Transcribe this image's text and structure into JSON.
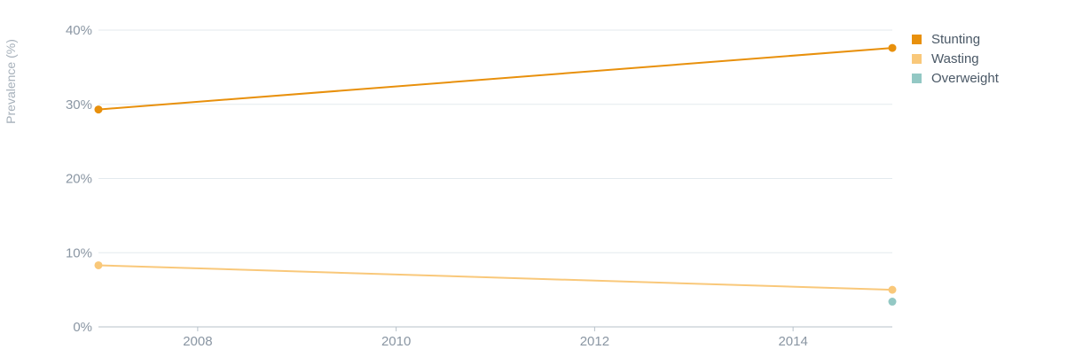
{
  "chart_data": {
    "type": "line",
    "title": "",
    "xlabel": "",
    "ylabel": "Prevalence (%)",
    "xlim": [
      2007,
      2015
    ],
    "ylim": [
      0,
      40
    ],
    "x_ticks": [
      2008,
      2010,
      2012,
      2014
    ],
    "y_ticks": [
      0,
      10,
      20,
      30,
      40
    ],
    "y_tick_labels": [
      "0%",
      "10%",
      "20%",
      "30%",
      "40%"
    ],
    "grid": "horizontal",
    "legend_position": "right",
    "series": [
      {
        "name": "Stunting",
        "color": "#E8900C",
        "points": [
          {
            "x": 2007,
            "y": 29.3
          },
          {
            "x": 2015,
            "y": 37.6
          }
        ]
      },
      {
        "name": "Wasting",
        "color": "#F9C87A",
        "points": [
          {
            "x": 2007,
            "y": 8.3
          },
          {
            "x": 2015,
            "y": 5.0
          }
        ]
      },
      {
        "name": "Overweight",
        "color": "#93C8C4",
        "points": [
          {
            "x": 2015,
            "y": 3.4
          }
        ]
      }
    ]
  }
}
